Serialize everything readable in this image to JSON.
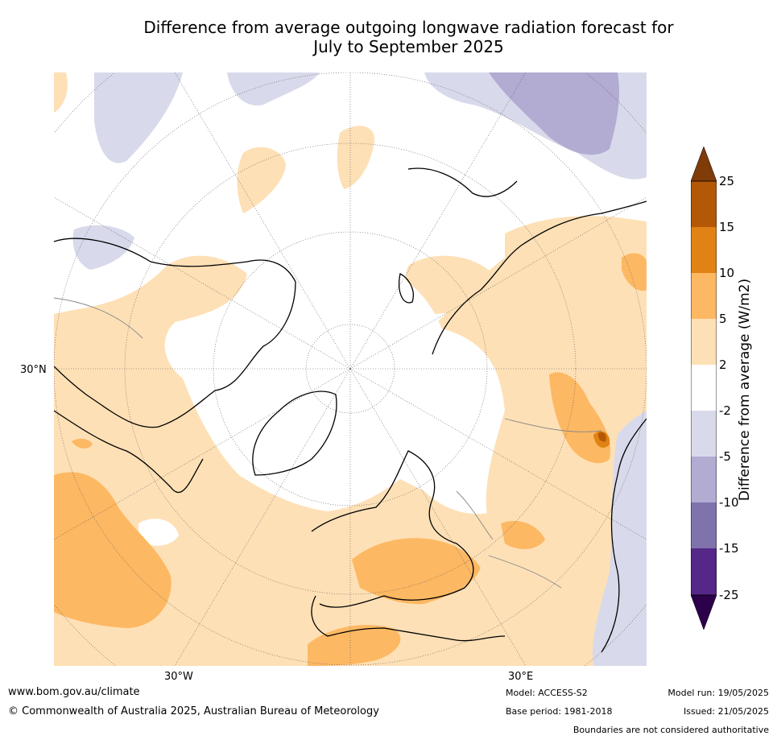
{
  "title": {
    "line1": "Difference from average outgoing longwave radiation forecast for",
    "line2": "July to September 2025"
  },
  "map": {
    "projection": "north polar stereographic",
    "labels": {
      "lat_30n": "30°N",
      "lon_30w": "30°W",
      "lon_30e": "30°E"
    }
  },
  "legend": {
    "title": "Difference from average (W/m2)",
    "ticks": [
      "25",
      "15",
      "10",
      "5",
      "2",
      "-2",
      "-5",
      "-10",
      "-15",
      "-25"
    ],
    "colors": {
      "above_25": "#7f3b08",
      "15_to_25": "#b35806",
      "10_to_15": "#e08214",
      "5_to_10": "#fdb863",
      "2_to_5": "#fee0b6",
      "neutral": "#ffffff",
      "m2_to_m5": "#d8daeb",
      "m5_to_m10": "#b2abd2",
      "m10_to_m15": "#8073ac",
      "m15_to_m25": "#542788",
      "below_m25": "#2d004b"
    }
  },
  "footer": {
    "website": "www.bom.gov.au/climate",
    "copyright": "© Commonwealth of Australia 2025, Australian Bureau of Meteorology",
    "model": "Model: ACCESS-S2",
    "model_run": "Model run: 19/05/2025",
    "base_period": "Base period: 1981-2018",
    "issued": "Issued: 21/05/2025",
    "disclaimer": "Boundaries are not considered authoritative"
  }
}
